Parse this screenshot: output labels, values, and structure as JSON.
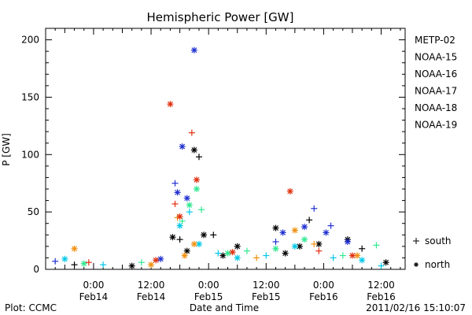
{
  "chart_data": {
    "type": "scatter",
    "title": "Hemispheric Power [GW]",
    "xlabel": "Date and Time",
    "ylabel": "P [GW]",
    "xlim": [
      "2011-02-13T14:00",
      "2011-02-16T17:00"
    ],
    "ylim": [
      0,
      210
    ],
    "yticks": [
      0,
      50,
      100,
      150,
      200
    ],
    "xticks": [
      {
        "t": "2011-02-14T00:00",
        "label1": "0:00",
        "label2": "Feb14"
      },
      {
        "t": "2011-02-14T12:00",
        "label1": "12:00",
        "label2": "Feb14"
      },
      {
        "t": "2011-02-15T00:00",
        "label1": "0:00",
        "label2": "Feb15"
      },
      {
        "t": "2011-02-15T12:00",
        "label1": "12:00",
        "label2": "Feb15"
      },
      {
        "t": "2011-02-16T00:00",
        "label1": "0:00",
        "label2": "Feb16"
      },
      {
        "t": "2011-02-16T12:00",
        "label1": "12:00",
        "label2": "Feb16"
      }
    ],
    "grid": false,
    "legend_position": "right",
    "series": [
      {
        "name": "METP-02",
        "color": "#000000",
        "points": [
          [
            "2011-02-14T16:30",
            28,
            "north"
          ],
          [
            "2011-02-14T18:00",
            26,
            "south"
          ],
          [
            "2011-02-14T19:30",
            16,
            "north"
          ],
          [
            "2011-02-14T21:00",
            104,
            "north"
          ],
          [
            "2011-02-14T22:00",
            98,
            "south"
          ],
          [
            "2011-02-14T23:00",
            30,
            "north"
          ],
          [
            "2011-02-15T01:00",
            30,
            "south"
          ],
          [
            "2011-02-15T03:00",
            12,
            "north"
          ],
          [
            "2011-02-15T06:00",
            20,
            "north"
          ],
          [
            "2011-02-15T14:00",
            36,
            "north"
          ],
          [
            "2011-02-15T16:00",
            14,
            "north"
          ],
          [
            "2011-02-15T19:00",
            20,
            "north"
          ],
          [
            "2011-02-15T21:00",
            43,
            "south"
          ],
          [
            "2011-02-15T23:00",
            22,
            "north"
          ],
          [
            "2011-02-16T05:00",
            26,
            "north"
          ],
          [
            "2011-02-16T08:00",
            18,
            "south"
          ],
          [
            "2011-02-16T13:00",
            6,
            "north"
          ],
          [
            "2011-02-13T20:00",
            4,
            "south"
          ],
          [
            "2011-02-14T08:00",
            3,
            "north"
          ]
        ]
      },
      {
        "name": "NOAA-15",
        "color": "#1f2fd0",
        "points": [
          [
            "2011-02-14T17:00",
            75,
            "south"
          ],
          [
            "2011-02-14T17:30",
            67,
            "north"
          ],
          [
            "2011-02-14T18:30",
            107,
            "north"
          ],
          [
            "2011-02-14T19:30",
            62,
            "north"
          ],
          [
            "2011-02-14T21:00",
            191,
            "north"
          ],
          [
            "2011-02-15T14:00",
            24,
            "south"
          ],
          [
            "2011-02-15T15:30",
            32,
            "north"
          ],
          [
            "2011-02-15T20:00",
            37,
            "north"
          ],
          [
            "2011-02-15T22:00",
            53,
            "south"
          ],
          [
            "2011-02-16T00:30",
            32,
            "north"
          ],
          [
            "2011-02-16T01:30",
            38,
            "south"
          ],
          [
            "2011-02-16T05:00",
            24,
            "north"
          ],
          [
            "2011-02-13T16:00",
            7,
            "south"
          ],
          [
            "2011-02-14T14:00",
            9,
            "north"
          ]
        ]
      },
      {
        "name": "NOAA-16",
        "color": "#00c8e8",
        "points": [
          [
            "2011-02-14T18:00",
            38,
            "north"
          ],
          [
            "2011-02-14T20:00",
            50,
            "south"
          ],
          [
            "2011-02-14T22:00",
            22,
            "north"
          ],
          [
            "2011-02-15T02:00",
            14,
            "south"
          ],
          [
            "2011-02-15T06:00",
            10,
            "north"
          ],
          [
            "2011-02-15T12:00",
            12,
            "south"
          ],
          [
            "2011-02-15T18:00",
            20,
            "north"
          ],
          [
            "2011-02-16T02:00",
            10,
            "south"
          ],
          [
            "2011-02-16T08:00",
            8,
            "north"
          ],
          [
            "2011-02-16T12:00",
            3,
            "south"
          ],
          [
            "2011-02-13T18:00",
            9,
            "north"
          ],
          [
            "2011-02-14T02:00",
            4,
            "south"
          ]
        ]
      },
      {
        "name": "NOAA-17",
        "color": "#30e890",
        "points": [
          [
            "2011-02-14T18:30",
            42,
            "south"
          ],
          [
            "2011-02-14T20:00",
            56,
            "north"
          ],
          [
            "2011-02-14T21:30",
            70,
            "north"
          ],
          [
            "2011-02-14T22:30",
            52,
            "south"
          ],
          [
            "2011-02-15T04:00",
            14,
            "north"
          ],
          [
            "2011-02-15T08:00",
            16,
            "south"
          ],
          [
            "2011-02-15T14:00",
            18,
            "north"
          ],
          [
            "2011-02-15T20:00",
            26,
            "north"
          ],
          [
            "2011-02-16T04:00",
            12,
            "south"
          ],
          [
            "2011-02-16T11:00",
            21,
            "south"
          ],
          [
            "2011-02-13T22:00",
            5,
            "north"
          ],
          [
            "2011-02-14T10:00",
            6,
            "south"
          ]
        ]
      },
      {
        "name": "NOAA-18",
        "color": "#f09010",
        "points": [
          [
            "2011-02-13T20:00",
            18,
            "north"
          ],
          [
            "2011-02-14T17:30",
            45,
            "south"
          ],
          [
            "2011-02-14T19:00",
            12,
            "north"
          ],
          [
            "2011-02-14T21:00",
            22,
            "north"
          ],
          [
            "2011-02-15T10:00",
            10,
            "south"
          ],
          [
            "2011-02-15T18:00",
            34,
            "north"
          ],
          [
            "2011-02-15T22:00",
            22,
            "south"
          ],
          [
            "2011-02-16T07:00",
            12,
            "north"
          ],
          [
            "2011-02-14T12:00",
            4,
            "north"
          ]
        ]
      },
      {
        "name": "NOAA-19",
        "color": "#e03010",
        "points": [
          [
            "2011-02-14T16:00",
            144,
            "north"
          ],
          [
            "2011-02-14T17:00",
            57,
            "south"
          ],
          [
            "2011-02-14T18:00",
            46,
            "north"
          ],
          [
            "2011-02-14T20:30",
            119,
            "south"
          ],
          [
            "2011-02-14T21:30",
            78,
            "north"
          ],
          [
            "2011-02-15T05:00",
            15,
            "north"
          ],
          [
            "2011-02-15T17:00",
            68,
            "north"
          ],
          [
            "2011-02-15T23:00",
            16,
            "south"
          ],
          [
            "2011-02-16T06:00",
            12,
            "north"
          ],
          [
            "2011-02-13T23:00",
            6,
            "south"
          ],
          [
            "2011-02-14T13:00",
            8,
            "north"
          ]
        ]
      }
    ],
    "symbol_legend": [
      {
        "symbol": "+",
        "label": "south"
      },
      {
        "symbol": "*",
        "label": "north"
      }
    ]
  },
  "footer": {
    "left": "Plot: CCMC",
    "center": "Date and Time",
    "right": "2011/02/16 15:10:07"
  }
}
